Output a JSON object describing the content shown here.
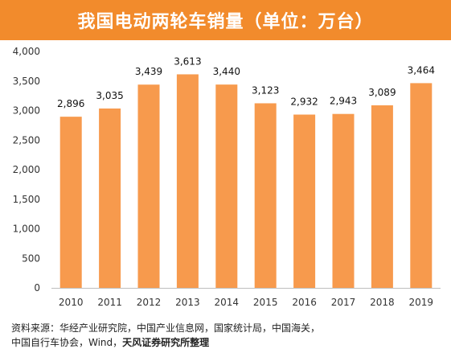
{
  "banner": {
    "title": "我国电动两轮车销量（单位：万台）"
  },
  "colors": {
    "accent": "#f28b2c",
    "bar": "#f79a4d",
    "axis": "#bfbfbf"
  },
  "chart_data": {
    "type": "bar",
    "title": "我国电动两轮车销量（单位：万台）",
    "categories": [
      "2010",
      "2011",
      "2012",
      "2013",
      "2014",
      "2015",
      "2016",
      "2017",
      "2018",
      "2019"
    ],
    "values": [
      2896,
      3035,
      3439,
      3613,
      3440,
      3123,
      2932,
      2943,
      3089,
      3464
    ],
    "data_labels": [
      "2,896",
      "3,035",
      "3,439",
      "3,613",
      "3,440",
      "3,123",
      "2,932",
      "2,943",
      "3,089",
      "3,464"
    ],
    "ylim": [
      0,
      4000
    ],
    "yticks": [
      0,
      500,
      1000,
      1500,
      2000,
      2500,
      3000,
      3500,
      4000
    ],
    "ytick_labels": [
      "0",
      "500",
      "1,000",
      "1,500",
      "2,000",
      "2,500",
      "3,000",
      "3,500",
      "4,000"
    ],
    "grid": false,
    "legend": "none"
  },
  "source": {
    "line1": "资料来源：华经产业研究院，中国产业信息网，国家统计局，中国海关，",
    "line2_plain": "中国自行车协会，Wind，",
    "line2_bold": "天风证券研究所整理"
  }
}
